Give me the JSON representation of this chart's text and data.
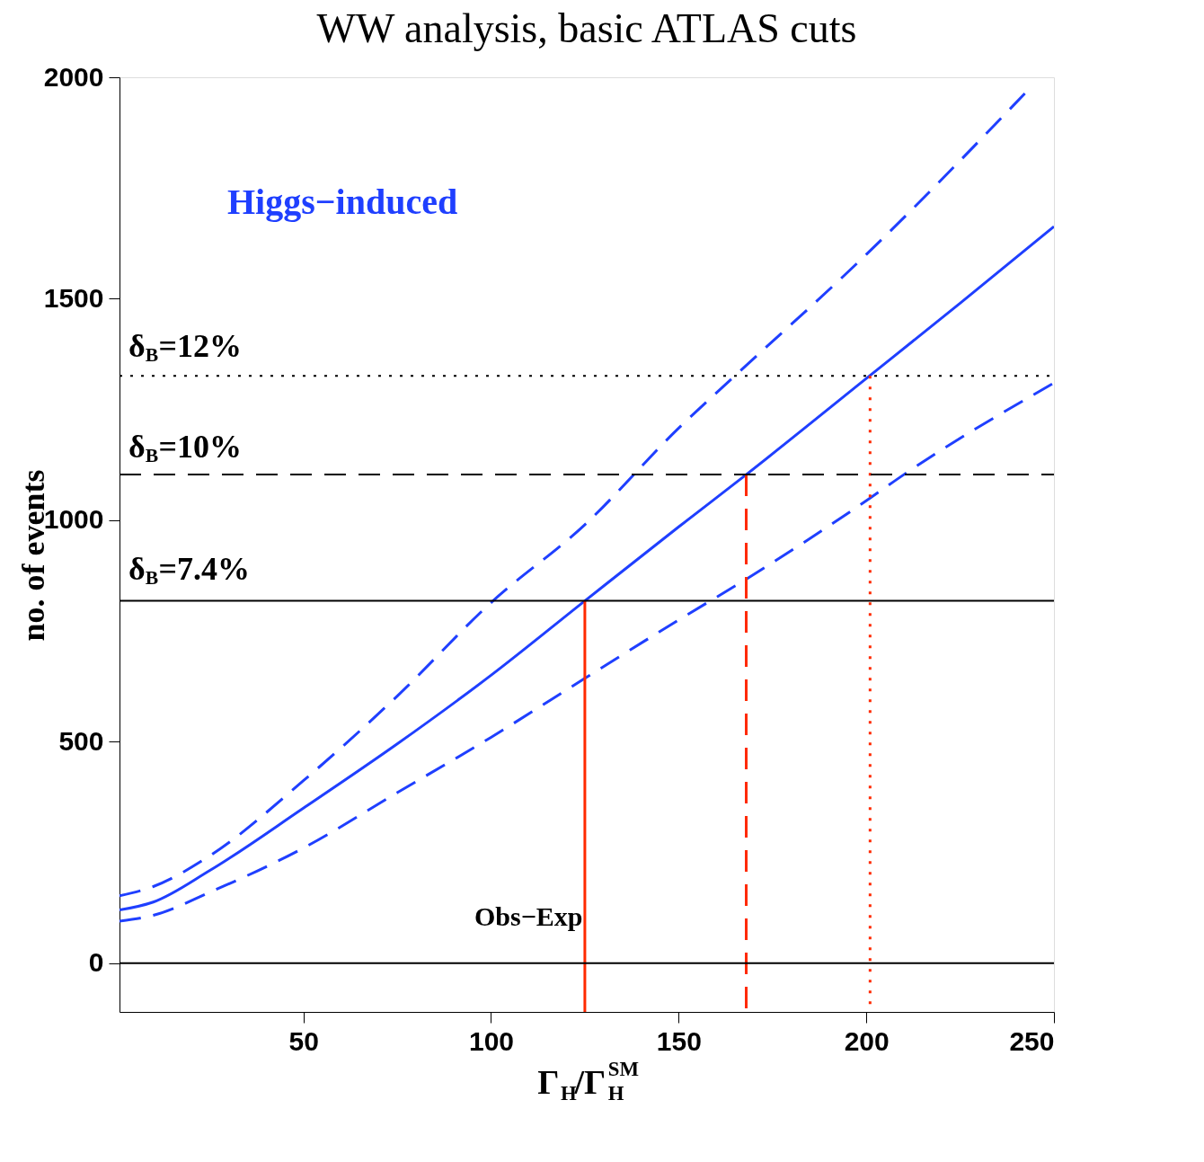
{
  "chart_data": {
    "type": "line",
    "title": "WW analysis, basic ATLAS cuts",
    "xlabel": "Γ$_{H}$/Γ$^{SM}$$_{H}$",
    "ylabel": "no. of events",
    "xlim": [
      1,
      250
    ],
    "ylim": [
      -110,
      2000
    ],
    "xticks": [
      50,
      100,
      150,
      200,
      250
    ],
    "yticks": [
      0,
      500,
      1000,
      1500,
      2000
    ],
    "grid": false,
    "series": [
      {
        "color": "#1f3fff",
        "line_style": "solid",
        "x": [
          1,
          10,
          25,
          50,
          75,
          100,
          125,
          150,
          168,
          200,
          225,
          250
        ],
        "values": [
          120,
          138,
          209,
          350,
          495,
          650,
          818,
          985,
          1103,
          1320,
          1490,
          1663
        ]
      },
      {
        "color": "#1f3fff",
        "line_style": "dashed",
        "x": [
          1,
          10,
          25,
          50,
          75,
          100,
          125,
          150,
          165,
          200,
          243
        ],
        "values": [
          152,
          173,
          242,
          412,
          603,
          814,
          990,
          1208,
          1326,
          1600,
          1970
        ]
      },
      {
        "color": "#1f3fff",
        "line_style": "dashed",
        "x": [
          1,
          10,
          25,
          50,
          75,
          100,
          125,
          150,
          168,
          201,
          210,
          250
        ],
        "values": [
          95,
          108,
          160,
          260,
          385,
          510,
          643,
          775,
          867,
          1050,
          1103,
          1310
        ]
      },
      {
        "color": "#ff2a00",
        "line_style": "solid",
        "x": [
          125,
          125
        ],
        "values": [
          818,
          -110
        ]
      },
      {
        "color": "#ff2a00",
        "line_style": "dashed",
        "x": [
          168,
          168
        ],
        "values": [
          1103,
          -110
        ]
      },
      {
        "color": "#ff2a00",
        "line_style": "dotted",
        "x": [
          201,
          201
        ],
        "values": [
          1326,
          -110
        ]
      }
    ],
    "ref_lines": [
      {
        "axis": "y",
        "value": 818,
        "color": "#000000",
        "line_style": "solid"
      },
      {
        "axis": "y",
        "value": 1103,
        "color": "#000000",
        "line_style": "dashed"
      },
      {
        "axis": "y",
        "value": 1326,
        "color": "#000000",
        "line_style": "dotted"
      },
      {
        "axis": "y",
        "value": 0,
        "color": "#000000",
        "line_style": "solid"
      }
    ],
    "annotations": [
      "Higgs−induced",
      "Obs−Exp",
      "δ$_{B}$=12%",
      "δ$_{B}$=10%",
      "δ$_{B}$=7.4%"
    ]
  }
}
